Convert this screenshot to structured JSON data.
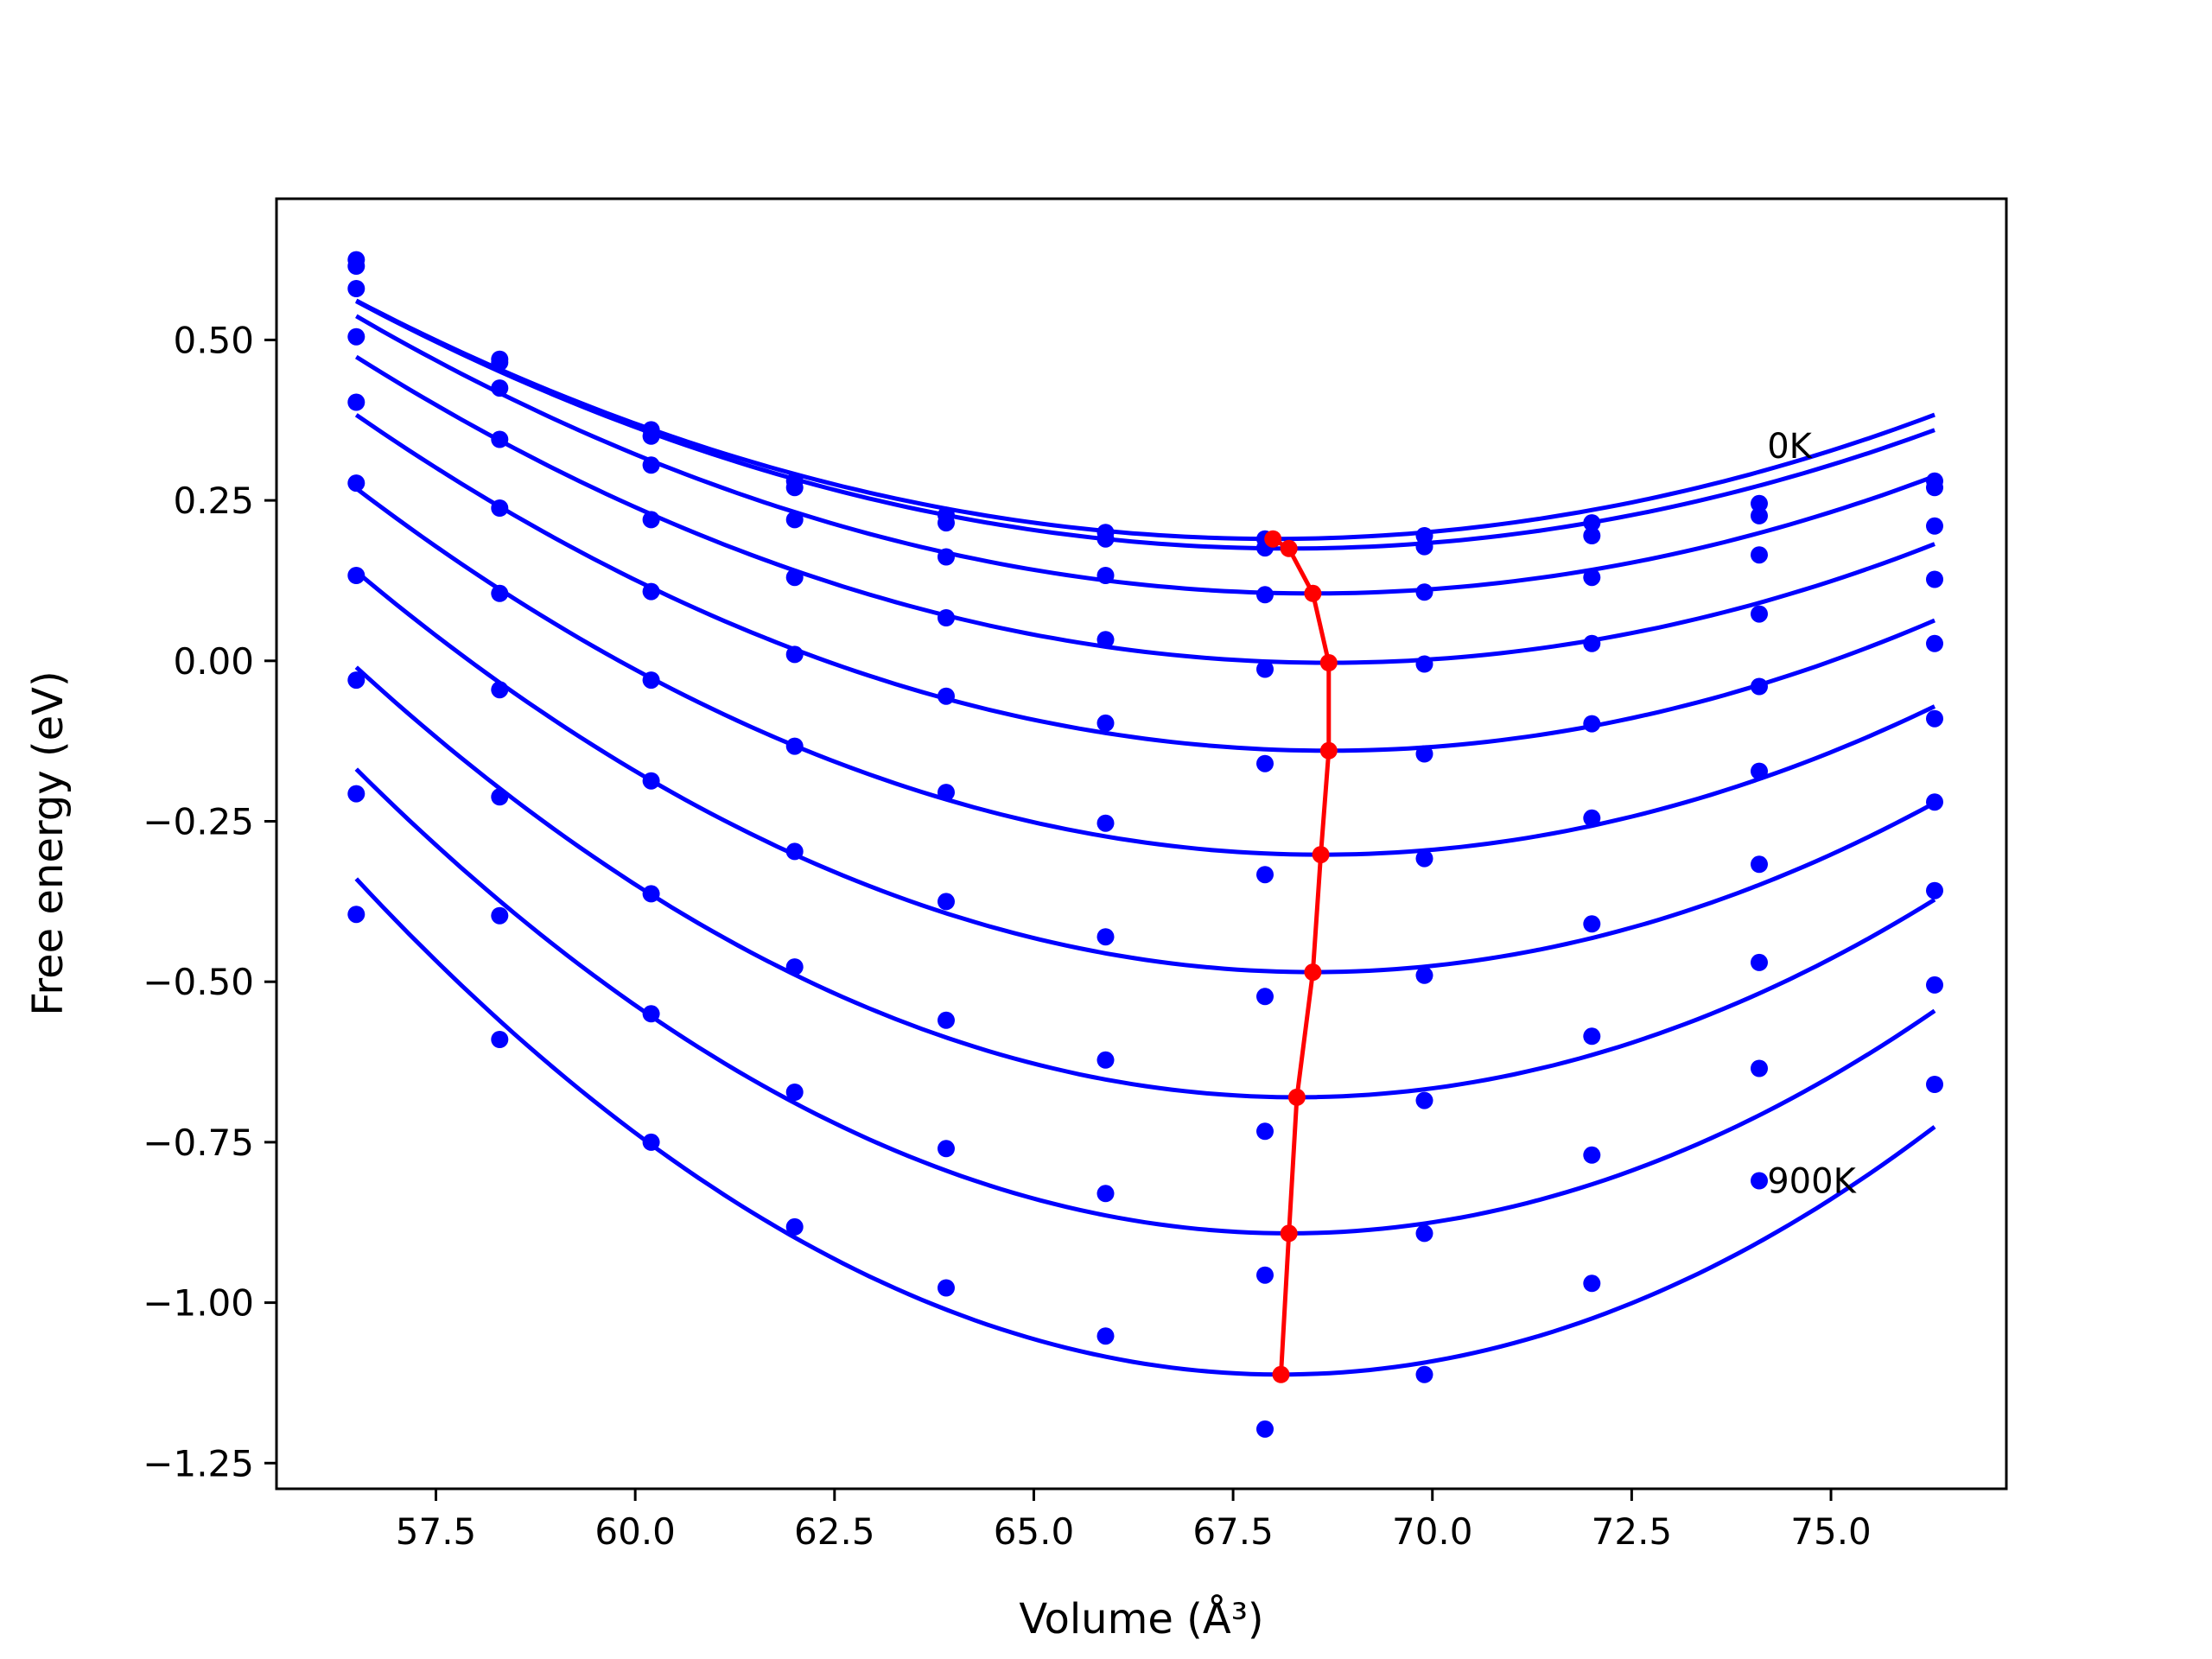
{
  "chart_data": {
    "type": "line",
    "xlabel": "Volume (Å³)",
    "ylabel": "Free energy (eV)",
    "xlim": [
      55.5,
      77.2
    ],
    "ylim": [
      -1.29,
      0.72
    ],
    "xticks": [
      57.5,
      60.0,
      62.5,
      65.0,
      67.5,
      70.0,
      72.5,
      75.0
    ],
    "xtick_labels": [
      "57.5",
      "60.0",
      "62.5",
      "65.0",
      "67.5",
      "70.0",
      "72.5",
      "75.0"
    ],
    "yticks": [
      0.5,
      0.25,
      0.0,
      -0.25,
      -0.5,
      -0.75,
      -1.0,
      -1.25
    ],
    "ytick_labels": [
      "0.50",
      "0.25",
      "0.00",
      "−0.25",
      "−0.50",
      "−0.75",
      "−1.00",
      "−1.25"
    ],
    "grid": false,
    "volumes": [
      56.5,
      58.3,
      60.2,
      62.0,
      63.9,
      65.9,
      67.9,
      69.9,
      72.0,
      74.1,
      76.3
    ],
    "series": [
      {
        "fit_min_volume": 68.0,
        "fit_min_energy": 0.19,
        "points": [
          0.625,
          0.47,
          0.36,
          0.28,
          0.227,
          0.2,
          0.19,
          0.195,
          0.215,
          0.245,
          0.28
        ]
      },
      {
        "fit_min_volume": 68.2,
        "fit_min_energy": 0.175,
        "points": [
          0.615,
          0.465,
          0.35,
          0.27,
          0.215,
          0.19,
          0.176,
          0.178,
          0.195,
          0.226,
          0.27
        ]
      },
      {
        "fit_min_volume": 68.5,
        "fit_min_energy": 0.105,
        "points": [
          0.58,
          0.425,
          0.305,
          0.22,
          0.162,
          0.133,
          0.103,
          0.107,
          0.13,
          0.165,
          0.21
        ]
      },
      {
        "fit_min_volume": 68.7,
        "fit_min_energy": -0.003,
        "points": [
          0.505,
          0.345,
          0.22,
          0.13,
          0.067,
          0.033,
          -0.013,
          -0.005,
          0.027,
          0.073,
          0.127
        ]
      },
      {
        "fit_min_volume": 68.7,
        "fit_min_energy": -0.14,
        "points": [
          0.403,
          0.238,
          0.108,
          0.01,
          -0.055,
          -0.097,
          -0.16,
          -0.145,
          -0.098,
          -0.04,
          0.027
        ]
      },
      {
        "fit_min_volume": 68.6,
        "fit_min_energy": -0.302,
        "points": [
          0.277,
          0.105,
          -0.03,
          -0.133,
          -0.205,
          -0.253,
          -0.333,
          -0.308,
          -0.245,
          -0.172,
          -0.09
        ]
      },
      {
        "fit_min_volume": 68.5,
        "fit_min_energy": -0.485,
        "points": [
          0.133,
          -0.045,
          -0.187,
          -0.297,
          -0.375,
          -0.43,
          -0.523,
          -0.49,
          -0.41,
          -0.317,
          -0.22
        ]
      },
      {
        "fit_min_volume": 68.3,
        "fit_min_energy": -0.68,
        "points": [
          -0.03,
          -0.212,
          -0.363,
          -0.477,
          -0.56,
          -0.622,
          -0.733,
          -0.685,
          -0.585,
          -0.47,
          -0.358
        ]
      },
      {
        "fit_min_volume": 68.2,
        "fit_min_energy": -0.892,
        "points": [
          -0.207,
          -0.397,
          -0.55,
          -0.672,
          -0.76,
          -0.83,
          -0.957,
          -0.892,
          -0.77,
          -0.635,
          -0.505
        ]
      },
      {
        "fit_min_volume": 68.1,
        "fit_min_energy": -1.112,
        "points": [
          -0.395,
          -0.59,
          -0.75,
          -0.882,
          -0.977,
          -1.052,
          -1.197,
          -1.112,
          -0.97,
          -0.81,
          -0.66
        ]
      }
    ],
    "minimum_path": {
      "volumes": [
        68.0,
        68.2,
        68.5,
        68.7,
        68.7,
        68.6,
        68.5,
        68.3,
        68.2,
        68.1
      ],
      "energies": [
        0.19,
        0.175,
        0.105,
        -0.003,
        -0.14,
        -0.302,
        -0.485,
        -0.68,
        -0.892,
        -1.112
      ]
    },
    "annotations": [
      {
        "text": "0K",
        "x": 74.2,
        "y": 0.335
      },
      {
        "text": "900K",
        "x": 74.2,
        "y": -0.81
      }
    ],
    "colors": {
      "curves": "#0000ff",
      "minimum_path": "#ff0000",
      "axes": "#000000"
    }
  }
}
